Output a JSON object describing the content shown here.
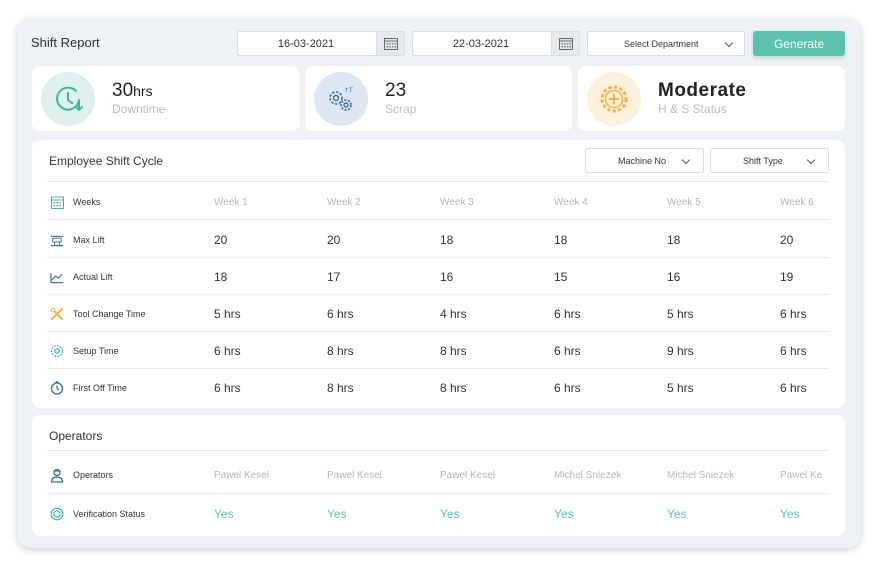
{
  "header": {
    "title": "Shift Report",
    "from_date": "16-03-2021",
    "to_date": "22-03-2021",
    "department_placeholder": "Select Department",
    "generate_label": "Generate"
  },
  "stats": {
    "downtime": {
      "value": "30",
      "unit": "hrs",
      "label": "Downtime"
    },
    "scrap": {
      "value": "23",
      "label": "Scrap"
    },
    "hs": {
      "value": "Moderate",
      "label": "H & S Status"
    }
  },
  "cycle": {
    "title": "Employee Shift Cycle",
    "machine_filter": "Machine No",
    "shift_filter": "Shift Type",
    "header_label": "Weeks",
    "weeks": [
      "Week 1",
      "Week 2",
      "Week 3",
      "Week 4",
      "Week 5",
      "Week 6"
    ],
    "rows": [
      {
        "label": "Max Lift",
        "values": [
          "20",
          "20",
          "18",
          "18",
          "18",
          "20"
        ]
      },
      {
        "label": "Actual Lift",
        "values": [
          "18",
          "17",
          "16",
          "15",
          "16",
          "19"
        ]
      },
      {
        "label": "Tool Change Time",
        "values": [
          "5 hrs",
          "6 hrs",
          "4 hrs",
          "6 hrs",
          "5 hrs",
          "6 hrs"
        ]
      },
      {
        "label": "Setup Time",
        "values": [
          "6 hrs",
          "8 hrs",
          "8 hrs",
          "6 hrs",
          "9 hrs",
          "6 hrs"
        ]
      },
      {
        "label": "First Off Time",
        "values": [
          "6 hrs",
          "8 hrs",
          "8 hrs",
          "6 hrs",
          "5 hrs",
          "6 hrs"
        ]
      }
    ]
  },
  "operators": {
    "title": "Operators",
    "names_label": "Operators",
    "names": [
      "Pawel Kesel",
      "Pawel Kesel",
      "Pawel Kesel",
      "Michel Sniezek",
      "Michel Sniezek",
      "Pawel Ke"
    ],
    "status_label": "Verification Status",
    "status": [
      "Yes",
      "Yes",
      "Yes",
      "Yes",
      "Yes",
      "Yes"
    ]
  },
  "icons": {
    "downtime": "clock-icon",
    "scrap": "gears-icon",
    "hs": "gear-plus-icon",
    "calendar": "calendar-icon"
  },
  "colors": {
    "accent": "#5cc1ae",
    "downtime_bg": "#dff1ef",
    "scrap_bg": "#dde8f4",
    "hs_bg": "#fdf0dc",
    "hs_icon": "#f5b24a",
    "scrap_icon": "#3f6c9a"
  }
}
